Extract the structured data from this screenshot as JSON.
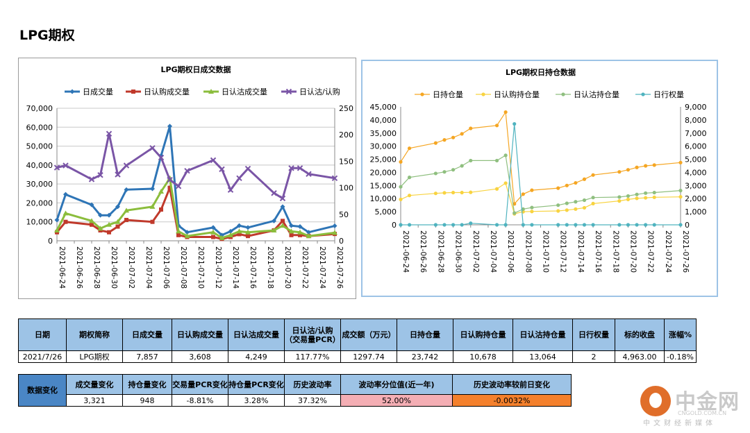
{
  "page_title": "LPG期权",
  "chart_data": [
    {
      "type": "line",
      "title": "LPG期权日成交数据",
      "x": [
        "2021-06-24",
        "2021-06-25",
        "2021-06-28",
        "2021-06-29",
        "2021-06-30",
        "2021-07-01",
        "2021-07-02",
        "2021-07-05",
        "2021-07-06",
        "2021-07-07",
        "2021-07-08",
        "2021-07-09",
        "2021-07-12",
        "2021-07-13",
        "2021-07-14",
        "2021-07-15",
        "2021-07-16",
        "2021-07-19",
        "2021-07-20",
        "2021-07-21",
        "2021-07-22",
        "2021-07-23",
        "2021-07-26"
      ],
      "xticks": [
        "2021-06-24",
        "2021-06-26",
        "2021-06-28",
        "2021-06-30",
        "2021-07-02",
        "2021-07-04",
        "2021-07-06",
        "2021-07-08",
        "2021-07-10",
        "2021-07-12",
        "2021-07-14",
        "2021-07-16",
        "2021-07-18",
        "2021-07-20",
        "2021-07-22",
        "2021-07-24",
        "2021-07-26"
      ],
      "x_range": [
        "2021-06-24",
        "2021-07-26"
      ],
      "ylim_left": [
        0,
        70000
      ],
      "yticks_left": [
        "0",
        "10,000",
        "20,000",
        "30,000",
        "40,000",
        "50,000",
        "60,000",
        "70,000"
      ],
      "ylim_right": [
        0,
        250
      ],
      "yticks_right": [
        "0",
        "50",
        "100",
        "150",
        "200",
        "250"
      ],
      "legend_position": "top",
      "grid": "horizontal",
      "series": [
        {
          "name": "日成交量",
          "color": "#2e75b6",
          "marker": "diamond",
          "axis": "left",
          "values": [
            11000,
            24500,
            19000,
            13500,
            13500,
            18000,
            27000,
            27500,
            45000,
            60500,
            8000,
            4500,
            7000,
            3000,
            5000,
            8000,
            7000,
            10500,
            18000,
            8000,
            7500,
            4500,
            7857
          ]
        },
        {
          "name": "日认购成交量",
          "color": "#c0392b",
          "marker": "square",
          "axis": "left",
          "values": [
            4500,
            10000,
            8500,
            5500,
            4500,
            7500,
            11000,
            10000,
            16500,
            28000,
            3000,
            2000,
            2000,
            1000,
            2000,
            3500,
            2500,
            5500,
            10500,
            3000,
            3000,
            2500,
            3608
          ]
        },
        {
          "name": "日认沽成交量",
          "color": "#8bbd3c",
          "marker": "triangle",
          "axis": "left",
          "values": [
            5500,
            14500,
            10500,
            6500,
            8500,
            10000,
            16000,
            18000,
            26000,
            33000,
            5000,
            2500,
            4500,
            1500,
            3000,
            5000,
            4500,
            5500,
            8000,
            5000,
            4500,
            2500,
            4249
          ]
        },
        {
          "name": "日认沽/认购",
          "color": "#7a55a6",
          "marker": "x",
          "axis": "right",
          "values": [
            138,
            142,
            116,
            124,
            202,
            125,
            142,
            175,
            157,
            115,
            103,
            132,
            152,
            135,
            96,
            118,
            136,
            90,
            80,
            137,
            137,
            126,
            118
          ]
        }
      ]
    },
    {
      "type": "line",
      "title": "LPG期权日持仓数据",
      "x": [
        "2021-06-24",
        "2021-06-25",
        "2021-06-28",
        "2021-06-29",
        "2021-06-30",
        "2021-07-01",
        "2021-07-02",
        "2021-07-05",
        "2021-07-06",
        "2021-07-07",
        "2021-07-08",
        "2021-07-09",
        "2021-07-12",
        "2021-07-13",
        "2021-07-14",
        "2021-07-15",
        "2021-07-16",
        "2021-07-19",
        "2021-07-20",
        "2021-07-21",
        "2021-07-22",
        "2021-07-23",
        "2021-07-26"
      ],
      "xticks": [
        "2021-06-24",
        "2021-06-26",
        "2021-06-28",
        "2021-06-30",
        "2021-07-02",
        "2021-07-04",
        "2021-07-06",
        "2021-07-08",
        "2021-07-10",
        "2021-07-12",
        "2021-07-14",
        "2021-07-16",
        "2021-07-18",
        "2021-07-20",
        "2021-07-22",
        "2021-07-24",
        "2021-07-26"
      ],
      "x_range": [
        "2021-06-24",
        "2021-07-26"
      ],
      "ylim_left": [
        0,
        45000
      ],
      "yticks_left": [
        "0",
        "5,000",
        "10,000",
        "15,000",
        "20,000",
        "25,000",
        "30,000",
        "35,000",
        "40,000",
        "45,000"
      ],
      "ylim_right": [
        0,
        9000
      ],
      "yticks_right": [
        "0",
        "1,000",
        "2,000",
        "3,000",
        "4,000",
        "5,000",
        "6,000",
        "7,000",
        "8,000",
        "9,000"
      ],
      "legend_position": "top",
      "grid": "none",
      "series": [
        {
          "name": "日持仓量",
          "color": "#f5a623",
          "marker": "circle",
          "axis": "left",
          "values": [
            24000,
            29200,
            31200,
            32400,
            33300,
            34700,
            36800,
            37900,
            43000,
            8000,
            11700,
            13200,
            14000,
            15000,
            16000,
            17400,
            19000,
            20200,
            21000,
            21900,
            22500,
            22800,
            23742
          ]
        },
        {
          "name": "日认购持仓量",
          "color": "#f8d340",
          "marker": "circle",
          "axis": "left",
          "values": [
            9700,
            11200,
            12000,
            12200,
            12300,
            12300,
            12400,
            13700,
            15900,
            4200,
            5000,
            5100,
            5300,
            5600,
            6000,
            6500,
            8100,
            9100,
            9700,
            10100,
            10300,
            10500,
            10678
          ]
        },
        {
          "name": "日认沽持仓量",
          "color": "#8fbf7f",
          "marker": "circle",
          "axis": "left",
          "values": [
            14500,
            18100,
            19600,
            20200,
            21000,
            22500,
            24500,
            24500,
            26500,
            4500,
            6000,
            6600,
            7500,
            8200,
            8800,
            9400,
            10400,
            10600,
            11000,
            11600,
            12100,
            12300,
            13064
          ]
        },
        {
          "name": "日行权量",
          "color": "#4fb3bf",
          "marker": "circle",
          "axis": "right",
          "values": [
            0,
            0,
            0,
            0,
            0,
            0,
            120,
            0,
            0,
            7700,
            0,
            0,
            0,
            0,
            0,
            0,
            0,
            0,
            0,
            0,
            0,
            0,
            2
          ]
        }
      ]
    }
  ],
  "stats_table": {
    "headers": [
      "日期",
      "期权简称",
      "日成交量",
      "日认购成交量",
      "日认沽成交量",
      "日认沽/认购（交易量PCR）",
      "成交额（万元）",
      "日持仓量",
      "日认购持仓量",
      "日认沽持仓量",
      "日行权量",
      "标的收盘",
      "涨幅%"
    ],
    "row": [
      "2021/7/26",
      "LPG期权",
      "7,857",
      "3,608",
      "4,249",
      "117.77%",
      "1297.74",
      "23,742",
      "10,678",
      "13,064",
      "2",
      "4,963.00",
      "-0.18%"
    ]
  },
  "change_table": {
    "row_header": "数据变化",
    "headers": [
      "成交量变化",
      "持仓量变化",
      "交易量PCR变化",
      "持仓量PCR变化",
      "历史波动率",
      "波动率分位值(近一年)",
      "历史波动率较前日变化"
    ],
    "row": [
      "3,321",
      "948",
      "-8.81%",
      "3.28%",
      "37.32%",
      "52.00%",
      "-0.0032%"
    ],
    "highlight_colors": {
      "pink": "#f4aeb4",
      "orange": "#f4802c"
    }
  },
  "logo": {
    "name": "中金网",
    "url": "CNGOLD.COM.CN",
    "slogan": "中文财经新媒体"
  }
}
